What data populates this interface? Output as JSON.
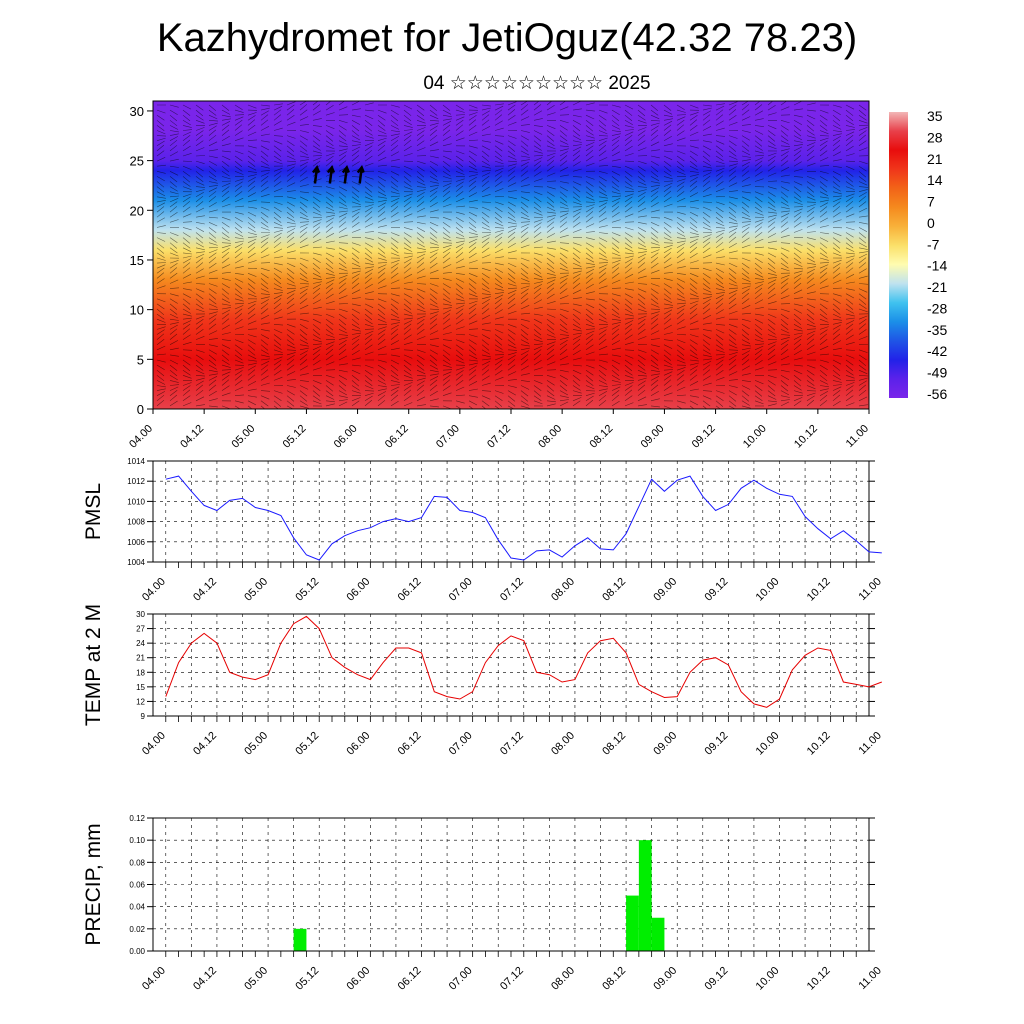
{
  "title": "Kazhydromet for JetiOguz(42.32 78.23)",
  "subtitle": "04 ☆☆☆☆☆☆☆☆☆ 2025",
  "time_ticks": [
    "04.00",
    "04.12",
    "05.00",
    "05.12",
    "06.00",
    "06.12",
    "07.00",
    "07.12",
    "08.00",
    "08.12",
    "09.00",
    "09.12",
    "10.00",
    "10.12",
    "11.00"
  ],
  "colors": {
    "pmsl": "#1a1aff",
    "temp": "#e60000",
    "precip": "#00ee00"
  },
  "chart_data": [
    {
      "name": "cross-section",
      "type": "heatmap",
      "yticks": [
        0,
        5,
        10,
        15,
        20,
        25,
        30
      ],
      "ylim": [
        0,
        31
      ],
      "colorbar_labels": [
        "35",
        "28",
        "21",
        "14",
        "7",
        "0",
        "-7",
        "-14",
        "-21",
        "-28",
        "-35",
        "-42",
        "-49",
        "-56"
      ],
      "colormap": [
        "#f2b6b6",
        "#e8404a",
        "#e80d0d",
        "#f0361a",
        "#f26418",
        "#f58a1e",
        "#f8b13a",
        "#fbe06a",
        "#fffcb0",
        "#bfe2ef",
        "#3fc2ef",
        "#1b8fe8",
        "#1f55e6",
        "#2222e8",
        "#5b22ea",
        "#7a25ea"
      ],
      "layers": [
        {
          "height": 0,
          "value": 28
        },
        {
          "height": 5,
          "value": 21
        },
        {
          "height": 9,
          "value": 14
        },
        {
          "height": 13,
          "value": 5
        },
        {
          "height": 16,
          "value": -8
        },
        {
          "height": 18,
          "value": -20
        },
        {
          "height": 21,
          "value": -35
        },
        {
          "height": 24,
          "value": -47
        },
        {
          "height": 25,
          "value": -52
        },
        {
          "height": 28,
          "value": -58
        },
        {
          "height": 31,
          "value": -60
        }
      ]
    },
    {
      "name": "pmsl",
      "type": "line",
      "ylabel": "PMSL",
      "yticks": [
        1004,
        1006,
        1008,
        1010,
        1012,
        1014
      ],
      "ylim": [
        1004,
        1014
      ],
      "x_start": 0,
      "x_step": 3,
      "values": [
        1012.2,
        1012.5,
        1011.0,
        1009.6,
        1009.1,
        1010.1,
        1010.3,
        1009.4,
        1009.1,
        1008.6,
        1006.4,
        1004.7,
        1004.2,
        1005.8,
        1006.6,
        1007.1,
        1007.4,
        1008.0,
        1008.3,
        1008.0,
        1008.4,
        1010.5,
        1010.4,
        1009.1,
        1008.9,
        1008.4,
        1006.2,
        1004.4,
        1004.2,
        1005.1,
        1005.2,
        1004.5,
        1005.6,
        1006.4,
        1005.3,
        1005.2,
        1006.8,
        1009.5,
        1012.2,
        1011.0,
        1012.1,
        1012.5,
        1010.5,
        1009.1,
        1009.7,
        1011.3,
        1012.1,
        1011.3,
        1010.7,
        1010.5,
        1008.5,
        1007.3,
        1006.3,
        1007.1,
        1006.1,
        1005.0,
        1004.9
      ]
    },
    {
      "name": "temp",
      "type": "line",
      "ylabel": "TEMP at 2 M",
      "yticks": [
        9,
        12,
        15,
        18,
        21,
        24,
        27,
        30
      ],
      "ylim": [
        9,
        30
      ],
      "x_start": 0,
      "x_step": 3,
      "values": [
        13.0,
        20.0,
        24.0,
        26.0,
        24.0,
        18.0,
        17.0,
        16.5,
        17.5,
        24.0,
        28.0,
        29.5,
        27.0,
        21.0,
        19.0,
        17.5,
        16.5,
        20.0,
        23.0,
        23.0,
        22.0,
        14.0,
        13.0,
        12.5,
        14.0,
        20.0,
        23.5,
        25.5,
        24.5,
        18.0,
        17.5,
        16.0,
        16.5,
        22.0,
        24.5,
        25.0,
        22.0,
        15.5,
        14.0,
        12.8,
        13.0,
        18.0,
        20.5,
        21.0,
        19.5,
        14.0,
        11.5,
        10.8,
        12.5,
        18.5,
        21.5,
        23.0,
        22.5,
        16.0,
        15.5,
        15.0,
        16.0
      ]
    },
    {
      "name": "precip",
      "type": "bar",
      "ylabel": "PRECIP, mm",
      "yticks": [
        "0.00",
        "0.02",
        "0.04",
        "0.06",
        "0.08",
        "0.10",
        "0.12"
      ],
      "ylim": [
        0,
        0.12
      ],
      "bar_width_hours": 3,
      "bars": [
        {
          "x_start": 33,
          "value": 0.02
        },
        {
          "x_start": 111,
          "value": 0.05
        },
        {
          "x_start": 114,
          "value": 0.1
        },
        {
          "x_start": 117,
          "value": 0.03
        }
      ]
    }
  ]
}
